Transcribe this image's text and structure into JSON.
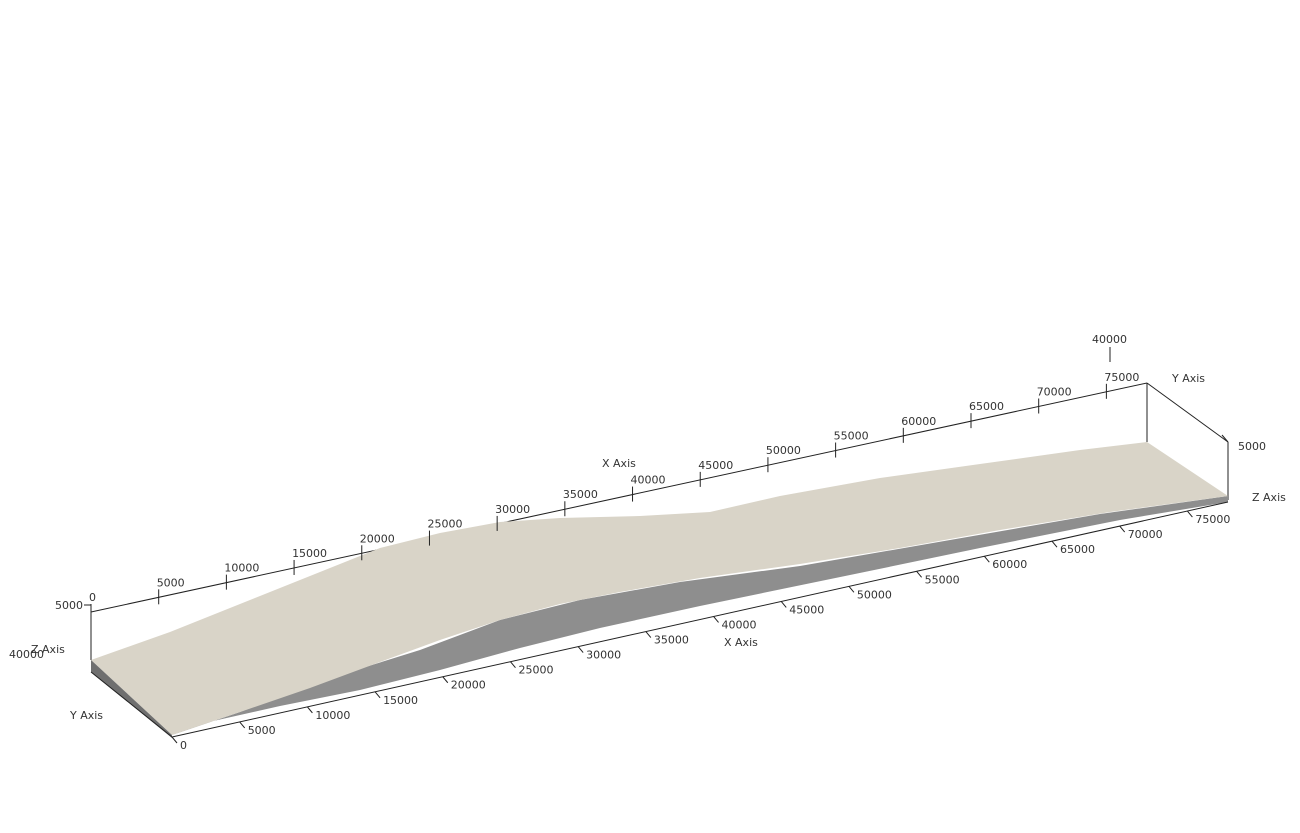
{
  "scene": {
    "colors": {
      "top_surface": "#d9d4c8",
      "top_surface_shade": "#cdc7ba",
      "side_face": "#8e8e8e",
      "end_face": "#6f6f6f",
      "axis": "#222222",
      "label": "#333333"
    },
    "x_axis_back": {
      "title": "X Axis",
      "ticks": [
        "0",
        "5000",
        "10000",
        "15000",
        "20000",
        "25000",
        "30000",
        "35000",
        "40000",
        "45000",
        "50000",
        "55000",
        "60000",
        "65000",
        "70000",
        "75000"
      ]
    },
    "x_axis_front": {
      "title": "X Axis",
      "ticks": [
        "0",
        "5000",
        "10000",
        "15000",
        "20000",
        "25000",
        "30000",
        "35000",
        "40000",
        "45000",
        "50000",
        "55000",
        "60000",
        "65000",
        "70000",
        "75000"
      ]
    },
    "y_axis_left": {
      "title": "Y Axis",
      "max_label": "40000"
    },
    "y_axis_right": {
      "title": "Y Axis",
      "max_label": "40000"
    },
    "z_axis_left": {
      "title": "Z Axis",
      "tick_label": "5000"
    },
    "z_axis_right": {
      "title": "Z Axis",
      "tick_label": "5000"
    }
  }
}
